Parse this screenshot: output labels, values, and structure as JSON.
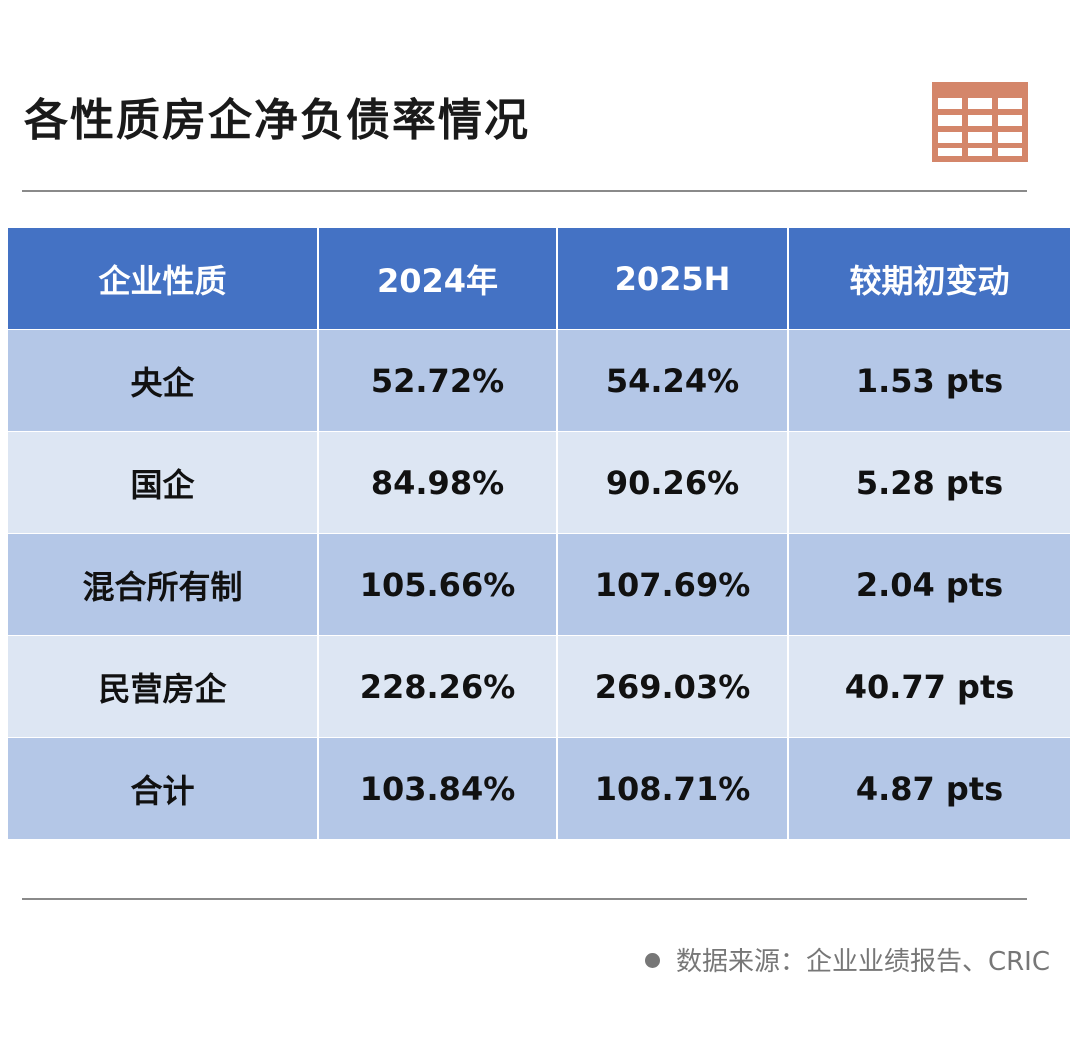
{
  "title": "各性质房企净负债率情况",
  "icons": {
    "header_decoration": "table-grid-icon",
    "source_marker": "bullet-dot-icon"
  },
  "colors": {
    "header_bg": "#4472c4",
    "row_dark": "#b4c7e7",
    "row_light": "#dde6f3",
    "icon": "#d4866a"
  },
  "chart_data": {
    "type": "table",
    "title": "各性质房企净负债率情况",
    "columns": [
      "企业性质",
      "2024年",
      "2025H",
      "较期初变动"
    ],
    "rows": [
      [
        "央企",
        "52.72%",
        "54.24%",
        "1.53 pts"
      ],
      [
        "国企",
        "84.98%",
        "90.26%",
        "5.28 pts"
      ],
      [
        "混合所有制",
        "105.66%",
        "107.69%",
        "2.04 pts"
      ],
      [
        "民营房企",
        "228.26%",
        "269.03%",
        "40.77 pts"
      ],
      [
        "合计",
        "103.84%",
        "108.71%",
        "4.87 pts"
      ]
    ]
  },
  "source": "数据来源：企业业绩报告、CRIC"
}
